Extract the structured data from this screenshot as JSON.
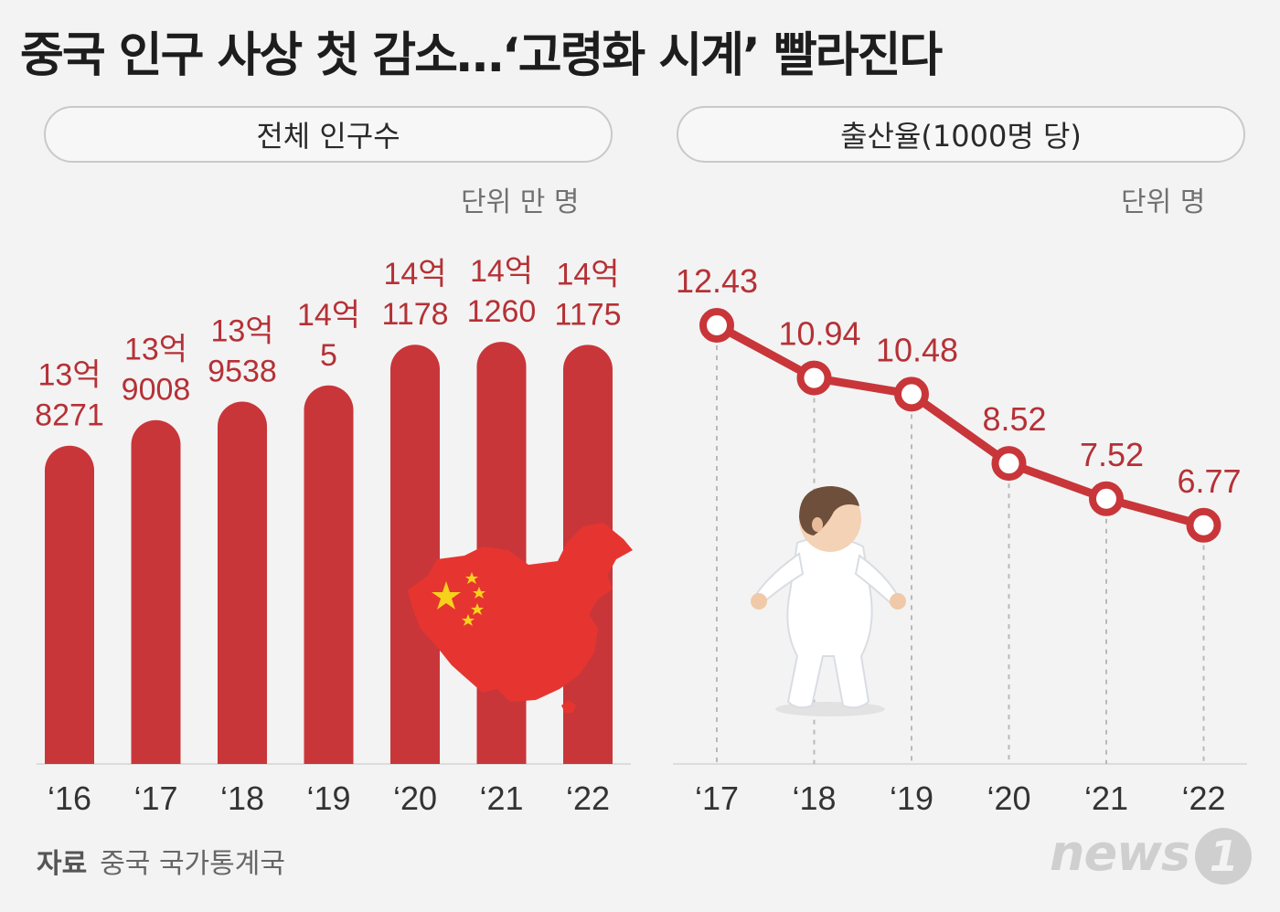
{
  "title": "중국 인구 사상 첫 감소…‘고령화 시계’ 빨라진다",
  "colors": {
    "accent": "#c8363a",
    "background": "#f3f3f3"
  },
  "left_panel": {
    "header": "전체 인구수",
    "unit": "단위 만 명"
  },
  "right_panel": {
    "header": "출산율(1000명 당)",
    "unit": "단위 명"
  },
  "source": {
    "label": "자료",
    "text": "중국 국가통계국"
  },
  "logo": {
    "text": "news",
    "mark": "1"
  },
  "illustrations": [
    "china-flag-map-icon",
    "baby-icon"
  ],
  "chart_data": [
    {
      "type": "bar",
      "title": "전체 인구수",
      "unit": "단위 만 명",
      "categories": [
        "‘16",
        "‘17",
        "‘18",
        "‘19",
        "‘20",
        "‘21",
        "‘22"
      ],
      "values": [
        138271,
        139008,
        139538,
        140005,
        141178,
        141260,
        141175
      ],
      "labels": [
        [
          "13억",
          "8271"
        ],
        [
          "13억",
          "9008"
        ],
        [
          "13억",
          "9538"
        ],
        [
          "14억",
          "5"
        ],
        [
          "14억",
          "1178"
        ],
        [
          "14억",
          "1260"
        ],
        [
          "14억",
          "1175"
        ]
      ],
      "color": "#c8363a"
    },
    {
      "type": "line",
      "title": "출산율(1000명 당)",
      "unit": "단위 명",
      "categories": [
        "‘17",
        "‘18",
        "‘19",
        "‘20",
        "‘21",
        "‘22"
      ],
      "values": [
        12.43,
        10.94,
        10.48,
        8.52,
        7.52,
        6.77
      ],
      "labels": [
        "12.43",
        "10.94",
        "10.48",
        "8.52",
        "7.52",
        "6.77"
      ],
      "color": "#c8363a"
    }
  ]
}
